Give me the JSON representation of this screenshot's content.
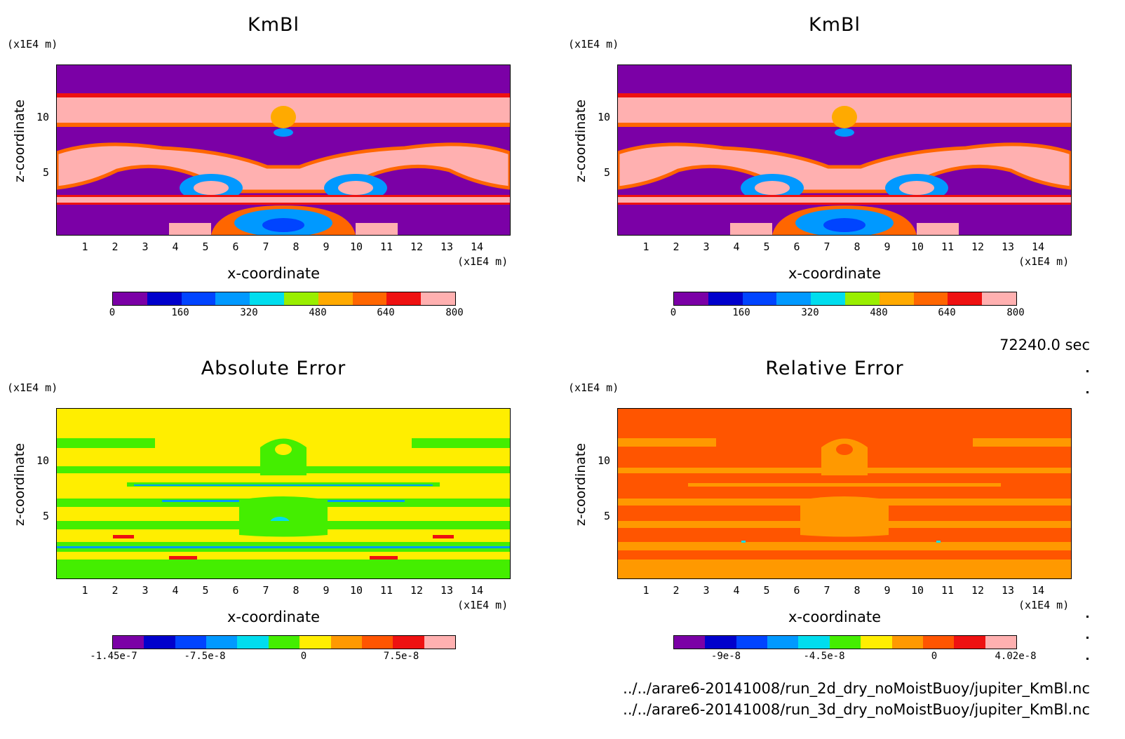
{
  "chart_data": [
    {
      "type": "heatmap",
      "title": "KmBl",
      "xlabel": "x-coordinate",
      "ylabel": "z-coordinate",
      "x_unit": "(x1E4 m)",
      "y_unit": "(x1E4 m)",
      "x_ticks": [
        "1",
        "2",
        "3",
        "4",
        "5",
        "6",
        "7",
        "8",
        "9",
        "10",
        "11",
        "12",
        "13",
        "14"
      ],
      "y_ticks": [
        "5",
        "10"
      ],
      "xlim": [
        0,
        15
      ],
      "ylim": [
        0,
        15
      ],
      "colorbar": {
        "colors": [
          "#7b00a6",
          "#0000cc",
          "#0044ff",
          "#0099ff",
          "#00ddee",
          "#99ee00",
          "#ffaa00",
          "#ff6600",
          "#ee1111",
          "#ffb0b0"
        ],
        "tick_labels": [
          "0",
          "160",
          "320",
          "480",
          "640",
          "800"
        ],
        "range": [
          0,
          800
        ]
      }
    },
    {
      "type": "heatmap",
      "title": "KmBl",
      "xlabel": "x-coordinate",
      "ylabel": "z-coordinate",
      "x_unit": "(x1E4 m)",
      "y_unit": "(x1E4 m)",
      "x_ticks": [
        "1",
        "2",
        "3",
        "4",
        "5",
        "6",
        "7",
        "8",
        "9",
        "10",
        "11",
        "12",
        "13",
        "14"
      ],
      "y_ticks": [
        "5",
        "10"
      ],
      "xlim": [
        0,
        15
      ],
      "ylim": [
        0,
        15
      ],
      "colorbar": {
        "colors": [
          "#7b00a6",
          "#0000cc",
          "#0044ff",
          "#0099ff",
          "#00ddee",
          "#99ee00",
          "#ffaa00",
          "#ff6600",
          "#ee1111",
          "#ffb0b0"
        ],
        "tick_labels": [
          "0",
          "160",
          "320",
          "480",
          "640",
          "800"
        ],
        "range": [
          0,
          800
        ]
      }
    },
    {
      "type": "heatmap",
      "title": "Absolute Error",
      "xlabel": "x-coordinate",
      "ylabel": "z-coordinate",
      "x_unit": "(x1E4 m)",
      "y_unit": "(x1E4 m)",
      "x_ticks": [
        "1",
        "2",
        "3",
        "4",
        "5",
        "6",
        "7",
        "8",
        "9",
        "10",
        "11",
        "12",
        "13",
        "14"
      ],
      "y_ticks": [
        "5",
        "10"
      ],
      "xlim": [
        0,
        15
      ],
      "ylim": [
        0,
        15
      ],
      "colorbar": {
        "colors": [
          "#7b00a6",
          "#0000cc",
          "#0044ff",
          "#0099ff",
          "#00ddee",
          "#44ee00",
          "#ffee00",
          "#ff9900",
          "#ff5500",
          "#ee1111",
          "#ffb0b0"
        ],
        "tick_labels": [
          "-1.45e-7",
          "-7.5e-8",
          "0",
          "7.5e-8"
        ],
        "range": [
          -1.45e-07,
          1.5e-07
        ]
      }
    },
    {
      "type": "heatmap",
      "title": "Relative Error",
      "xlabel": "x-coordinate",
      "ylabel": "z-coordinate",
      "x_unit": "(x1E4 m)",
      "y_unit": "(x1E4 m)",
      "x_ticks": [
        "1",
        "2",
        "3",
        "4",
        "5",
        "6",
        "7",
        "8",
        "9",
        "10",
        "11",
        "12",
        "13",
        "14"
      ],
      "y_ticks": [
        "5",
        "10"
      ],
      "xlim": [
        0,
        15
      ],
      "ylim": [
        0,
        15
      ],
      "colorbar": {
        "colors": [
          "#7b00a6",
          "#0000cc",
          "#0044ff",
          "#0099ff",
          "#00ddee",
          "#44ee00",
          "#ffee00",
          "#ff9900",
          "#ff5500",
          "#ee1111",
          "#ffb0b0"
        ],
        "tick_labels": [
          "-9e-8",
          "-4.5e-8",
          "0",
          "4.02e-8"
        ],
        "range": [
          -1.2e-07,
          4.02e-08
        ]
      }
    }
  ],
  "footer": {
    "time": "72240.0 sec",
    "file1": "../../arare6-20141008/run_2d_dry_noMoistBuoy/jupiter_KmBl.nc",
    "file2": "../../arare6-20141008/run_3d_dry_noMoistBuoy/jupiter_KmBl.nc"
  }
}
